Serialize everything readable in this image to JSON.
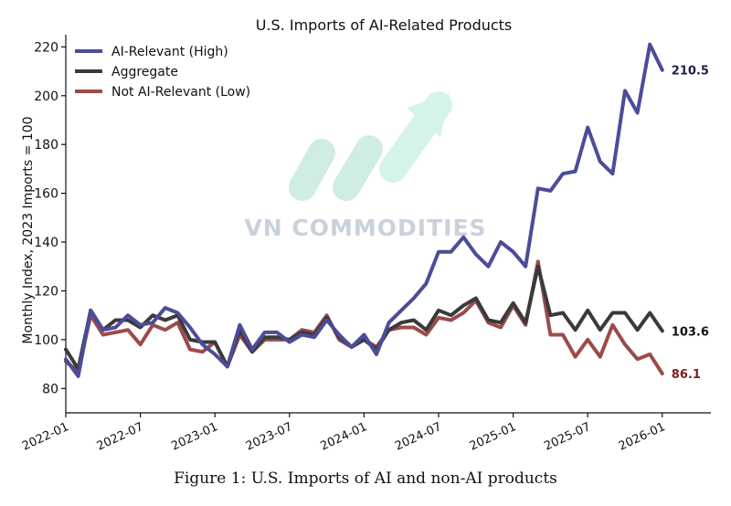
{
  "chart_data": {
    "type": "line",
    "title": "U.S. Imports of AI-Related Products",
    "xlabel": "",
    "ylabel": "Monthly Index, 2023 Imports = 100",
    "ylim": [
      70,
      225
    ],
    "yticks": [
      80,
      100,
      120,
      140,
      160,
      180,
      200,
      220
    ],
    "xticks": [
      {
        "label": "2022-01",
        "month": 0
      },
      {
        "label": "2022-07",
        "month": 6
      },
      {
        "label": "2023-01",
        "month": 12
      },
      {
        "label": "2023-07",
        "month": 18
      },
      {
        "label": "2024-01",
        "month": 24
      },
      {
        "label": "2024-07",
        "month": 30
      },
      {
        "label": "2025-01",
        "month": 36
      },
      {
        "label": "2025-07",
        "month": 42
      },
      {
        "label": "2026-01",
        "month": 48
      }
    ],
    "x_start": "2022-01",
    "legend_position": "top-left",
    "series": [
      {
        "name": "AI-Relevant (High)",
        "color": "#4b4c9a",
        "end_label": "210.5",
        "label_color": "#1d1f4f",
        "values": [
          92,
          85,
          112,
          104,
          105,
          110,
          106,
          107,
          113,
          111,
          105,
          98,
          94,
          89,
          106,
          96,
          103,
          103,
          99,
          102,
          101,
          108,
          102,
          97,
          102,
          94,
          107,
          112,
          117,
          123,
          136,
          136,
          142,
          135,
          130,
          140,
          136,
          130,
          162,
          161,
          168,
          169,
          187,
          173,
          168,
          202,
          193,
          221,
          210.5
        ]
      },
      {
        "name": "Aggregate",
        "color": "#3a3a3a",
        "end_label": "103.6",
        "label_color": "#111111",
        "values": [
          96,
          88,
          112,
          104,
          108,
          108,
          105,
          110,
          108,
          110,
          100,
          99,
          99,
          89,
          104,
          95,
          101,
          101,
          100,
          103,
          102,
          109,
          101,
          97,
          100,
          96,
          104,
          107,
          108,
          104,
          112,
          110,
          114,
          117,
          108,
          107,
          115,
          107,
          130,
          110,
          111,
          104,
          112,
          104,
          111,
          111,
          104,
          111,
          103.6
        ]
      },
      {
        "name": "Not AI-Relevant (Low)",
        "color": "#9b4b4b",
        "end_label": "86.1",
        "label_color": "#7a1f1f",
        "values": [
          91,
          87,
          110,
          102,
          103,
          104,
          98,
          106,
          104,
          107,
          96,
          95,
          99,
          89,
          102,
          95,
          100,
          100,
          100,
          104,
          103,
          110,
          100,
          97,
          100,
          97,
          104,
          105,
          105,
          102,
          109,
          108,
          111,
          116,
          107,
          105,
          114,
          106,
          132,
          102,
          102,
          93,
          100,
          93,
          106,
          98,
          92,
          94,
          86.1
        ]
      }
    ],
    "watermark": "VN COMMODITIES"
  },
  "caption": "Figure 1: U.S. Imports of AI and non-AI products"
}
